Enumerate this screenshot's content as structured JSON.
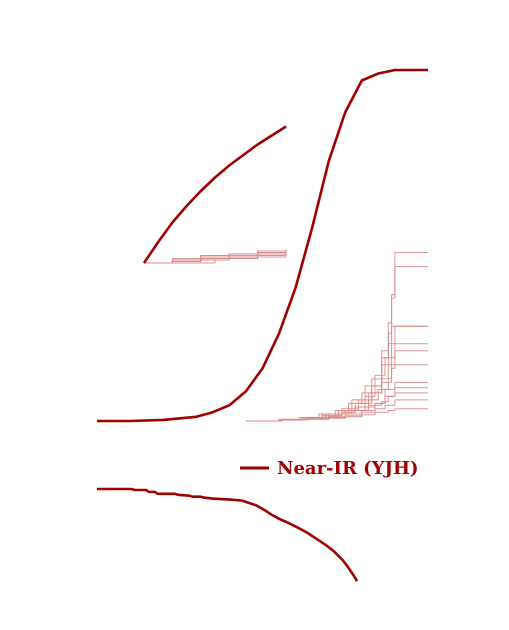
{
  "colors": {
    "main": "#a00000",
    "realization": "#d98a8a",
    "background": "#ffffff"
  },
  "chart_data": [
    {
      "type": "line",
      "panel": "main",
      "title": "",
      "xlabel": "",
      "ylabel": "",
      "xlim": [
        0,
        1
      ],
      "ylim": [
        0,
        1
      ],
      "grid": false,
      "legend": "none",
      "series": [
        {
          "role": "mean-curve",
          "x": [
            0,
            0.1,
            0.2,
            0.3,
            0.35,
            0.4,
            0.45,
            0.5,
            0.55,
            0.6,
            0.65,
            0.7,
            0.75,
            0.8,
            0.85,
            0.9,
            0.95,
            1.0
          ],
          "y": [
            0,
            0.0,
            0.003,
            0.012,
            0.025,
            0.045,
            0.085,
            0.15,
            0.25,
            0.38,
            0.55,
            0.74,
            0.88,
            0.97,
            0.99,
            1.0,
            1.0,
            1.0
          ]
        }
      ],
      "realizations": [
        {
          "x": [
            0.45,
            0.55,
            0.62,
            0.68,
            0.72,
            0.76,
            0.82,
            0.86,
            0.88,
            0.9,
            1.0
          ],
          "y": [
            0,
            0.005,
            0.01,
            0.015,
            0.02,
            0.03,
            0.045,
            0.055,
            0.07,
            0.095,
            0.095
          ]
        },
        {
          "x": [
            0.45,
            0.55,
            0.62,
            0.68,
            0.73,
            0.77,
            0.81,
            0.84,
            0.87,
            0.9,
            1.0
          ],
          "y": [
            0,
            0.004,
            0.01,
            0.02,
            0.03,
            0.06,
            0.1,
            0.13,
            0.18,
            0.22,
            0.22
          ]
        },
        {
          "x": [
            0.45,
            0.56,
            0.63,
            0.69,
            0.74,
            0.78,
            0.82,
            0.85,
            0.88,
            0.89,
            1.0
          ],
          "y": [
            0,
            0.003,
            0.008,
            0.015,
            0.025,
            0.04,
            0.06,
            0.09,
            0.16,
            0.27,
            0.27
          ]
        },
        {
          "x": [
            0.45,
            0.55,
            0.61,
            0.67,
            0.72,
            0.76,
            0.8,
            0.83,
            0.86,
            0.88,
            0.89,
            0.9,
            1.0
          ],
          "y": [
            0,
            0.004,
            0.01,
            0.02,
            0.03,
            0.05,
            0.08,
            0.12,
            0.2,
            0.28,
            0.36,
            0.48,
            0.48
          ]
        },
        {
          "x": [
            0.45,
            0.56,
            0.63,
            0.69,
            0.74,
            0.78,
            0.81,
            0.84,
            0.86,
            0.88,
            0.89,
            0.9,
            1.0
          ],
          "y": [
            0,
            0.003,
            0.008,
            0.015,
            0.025,
            0.04,
            0.07,
            0.1,
            0.18,
            0.25,
            0.35,
            0.44,
            0.44
          ]
        },
        {
          "x": [
            0.45,
            0.55,
            0.62,
            0.68,
            0.73,
            0.78,
            0.82,
            0.86,
            0.89,
            0.9,
            1.0
          ],
          "y": [
            0,
            0.004,
            0.01,
            0.02,
            0.03,
            0.05,
            0.08,
            0.11,
            0.16,
            0.2,
            0.2
          ]
        },
        {
          "x": [
            0.45,
            0.55,
            0.63,
            0.7,
            0.75,
            0.8,
            0.84,
            0.87,
            0.9,
            1.0
          ],
          "y": [
            0,
            0.003,
            0.006,
            0.01,
            0.015,
            0.025,
            0.035,
            0.045,
            0.06,
            0.06
          ]
        },
        {
          "x": [
            0.45,
            0.56,
            0.63,
            0.7,
            0.75,
            0.79,
            0.83,
            0.86,
            0.89,
            0.9,
            1.0
          ],
          "y": [
            0,
            0.004,
            0.01,
            0.02,
            0.03,
            0.05,
            0.08,
            0.12,
            0.15,
            0.16,
            0.16
          ]
        },
        {
          "x": [
            0.45,
            0.55,
            0.62,
            0.68,
            0.73,
            0.77,
            0.81,
            0.84,
            0.87,
            0.9,
            1.0
          ],
          "y": [
            0,
            0.004,
            0.008,
            0.015,
            0.02,
            0.03,
            0.04,
            0.05,
            0.09,
            0.11,
            0.11
          ]
        },
        {
          "x": [
            0.45,
            0.56,
            0.64,
            0.7,
            0.75,
            0.8,
            0.84,
            0.88,
            0.9,
            1.0
          ],
          "y": [
            0,
            0.003,
            0.005,
            0.008,
            0.012,
            0.018,
            0.025,
            0.03,
            0.035,
            0.035
          ]
        },
        {
          "x": [
            0.45,
            0.55,
            0.62,
            0.69,
            0.74,
            0.79,
            0.83,
            0.86,
            0.88,
            0.9,
            1.0
          ],
          "y": [
            0,
            0.004,
            0.01,
            0.02,
            0.035,
            0.06,
            0.1,
            0.16,
            0.22,
            0.27,
            0.27
          ]
        },
        {
          "x": [
            0.45,
            0.56,
            0.63,
            0.7,
            0.75,
            0.8,
            0.84,
            0.87,
            0.9,
            1.0
          ],
          "y": [
            0,
            0.003,
            0.007,
            0.012,
            0.02,
            0.03,
            0.05,
            0.07,
            0.08,
            0.08
          ]
        }
      ]
    },
    {
      "type": "line",
      "panel": "inset",
      "title": "",
      "xlabel": "",
      "ylabel": "",
      "grid": false,
      "legend": "none",
      "series": [
        {
          "role": "mean-curve",
          "x": [
            0,
            0.1,
            0.2,
            0.3,
            0.4,
            0.5,
            0.6,
            0.7,
            0.8,
            0.9,
            1.0
          ],
          "y": [
            0,
            0.14,
            0.27,
            0.38,
            0.48,
            0.57,
            0.65,
            0.72,
            0.79,
            0.85,
            0.91
          ]
        }
      ],
      "realizations": [
        {
          "x": [
            0,
            0.2,
            0.4,
            0.6,
            0.8,
            1.0
          ],
          "y": [
            0,
            0.02,
            0.04,
            0.06,
            0.08,
            0.09
          ]
        },
        {
          "x": [
            0,
            0.2,
            0.4,
            0.6,
            0.8,
            1.0
          ],
          "y": [
            0,
            0.03,
            0.05,
            0.06,
            0.07,
            0.08
          ]
        },
        {
          "x": [
            0,
            0.2,
            0.4,
            0.6,
            0.8,
            1.0
          ],
          "y": [
            0,
            0.01,
            0.03,
            0.05,
            0.06,
            0.07
          ]
        },
        {
          "x": [
            0,
            0.2,
            0.4,
            0.6,
            0.8,
            1.0
          ],
          "y": [
            0,
            0.02,
            0.03,
            0.04,
            0.05,
            0.06
          ]
        },
        {
          "x": [
            0,
            0.2,
            0.4,
            0.6,
            0.8,
            1.0
          ],
          "y": [
            0,
            0.01,
            0.02,
            0.03,
            0.04,
            0.05
          ]
        },
        {
          "x": [
            0,
            0.2,
            0.4,
            0.5,
            0.6,
            0.8,
            1.0
          ],
          "y": [
            0,
            0.0,
            0.0,
            0.02,
            0.03,
            0.05,
            0.06
          ]
        },
        {
          "x": [
            0,
            0.2,
            0.4,
            0.6,
            0.8,
            1.0
          ],
          "y": [
            0,
            0.02,
            0.05,
            0.06,
            0.07,
            0.09
          ]
        },
        {
          "x": [
            0,
            0.2,
            0.4,
            0.6,
            0.8,
            1.0
          ],
          "y": [
            0,
            0.01,
            0.02,
            0.04,
            0.06,
            0.08
          ]
        }
      ]
    },
    {
      "type": "line",
      "panel": "bottom",
      "title": "",
      "xlabel": "",
      "ylabel": "",
      "grid": false,
      "legend": "top-right",
      "series": [
        {
          "name": "Near-IR (YJH)",
          "x": [
            0,
            0.12,
            0.13,
            0.17,
            0.18,
            0.2,
            0.21,
            0.27,
            0.28,
            0.32,
            0.33,
            0.36,
            0.37,
            0.4,
            0.46,
            0.5,
            0.52,
            0.55,
            0.58,
            0.6,
            0.63,
            0.66,
            0.7,
            0.73,
            0.76,
            0.79,
            0.82,
            0.85,
            0.87,
            0.89,
            0.9
          ],
          "y": [
            1.0,
            1.0,
            0.99,
            0.99,
            0.97,
            0.97,
            0.95,
            0.95,
            0.94,
            0.93,
            0.92,
            0.92,
            0.91,
            0.9,
            0.89,
            0.88,
            0.86,
            0.83,
            0.78,
            0.74,
            0.69,
            0.65,
            0.59,
            0.54,
            0.48,
            0.42,
            0.35,
            0.26,
            0.18,
            0.09,
            0.04
          ]
        }
      ]
    }
  ]
}
